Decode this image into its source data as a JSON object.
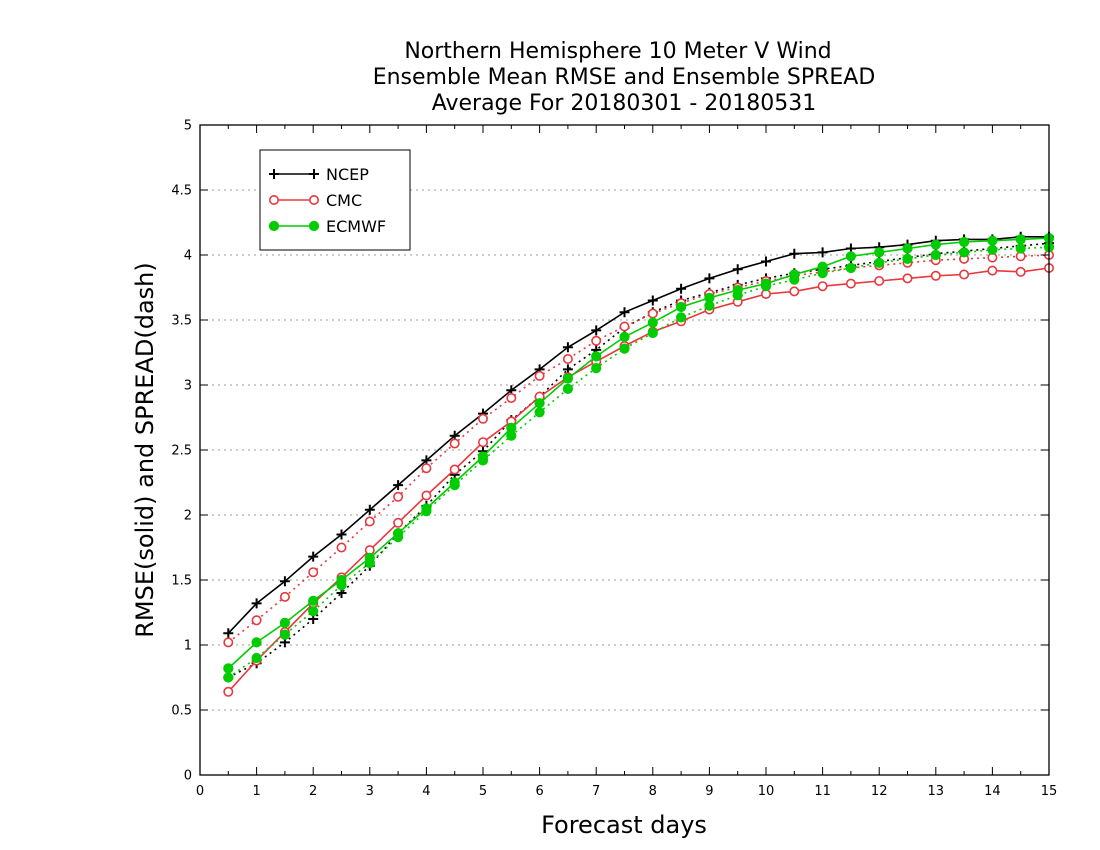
{
  "chart_data": {
    "type": "line",
    "title": [
      "Northern Hemisphere 10 Meter V Wind",
      "Ensemble Mean RMSE and Ensemble SPREAD",
      "Average For 20180301 - 20180531"
    ],
    "xlabel": "Forecast days",
    "ylabel": "RMSE(solid) and SPREAD(dash)",
    "xlim": [
      0,
      15
    ],
    "ylim": [
      0,
      5
    ],
    "xticks": [
      0,
      1,
      2,
      3,
      4,
      5,
      6,
      7,
      8,
      9,
      10,
      11,
      12,
      13,
      14,
      15
    ],
    "yticks": [
      0,
      0.5,
      1,
      1.5,
      2,
      2.5,
      3,
      3.5,
      4,
      4.5,
      5
    ],
    "ytick_labels": [
      "0",
      "0.5",
      "1",
      "1.5",
      "2",
      "2.5",
      "3",
      "3.5",
      "4",
      "4.5",
      "5"
    ],
    "grid": "horizontal dotted",
    "legend_position": "top-left",
    "x": [
      0.5,
      1,
      1.5,
      2,
      2.5,
      3,
      3.5,
      4,
      4.5,
      5,
      5.5,
      6,
      6.5,
      7,
      7.5,
      8,
      8.5,
      9,
      9.5,
      10,
      10.5,
      11,
      11.5,
      12,
      12.5,
      13,
      13.5,
      14,
      14.5,
      15
    ],
    "series": [
      {
        "name": "NCEP",
        "color": "#000000",
        "marker": "plus",
        "rmse": [
          1.09,
          1.32,
          1.49,
          1.68,
          1.85,
          2.04,
          2.23,
          2.42,
          2.61,
          2.78,
          2.96,
          3.12,
          3.29,
          3.42,
          3.56,
          3.65,
          3.74,
          3.82,
          3.89,
          3.95,
          4.01,
          4.02,
          4.05,
          4.06,
          4.08,
          4.11,
          4.12,
          4.12,
          4.14,
          4.14
        ],
        "spread": [
          0.75,
          0.86,
          1.02,
          1.2,
          1.4,
          1.61,
          1.86,
          2.07,
          2.31,
          2.49,
          2.73,
          2.91,
          3.12,
          3.27,
          3.44,
          3.56,
          3.65,
          3.71,
          3.77,
          3.82,
          3.86,
          3.89,
          3.92,
          3.95,
          3.98,
          4.01,
          4.03,
          4.05,
          4.07,
          4.09
        ]
      },
      {
        "name": "CMC",
        "color": "#e8383d",
        "marker": "open-circle",
        "rmse": [
          0.64,
          0.88,
          1.1,
          1.32,
          1.52,
          1.73,
          1.94,
          2.15,
          2.35,
          2.56,
          2.72,
          2.91,
          3.06,
          3.18,
          3.3,
          3.41,
          3.49,
          3.58,
          3.64,
          3.7,
          3.72,
          3.76,
          3.78,
          3.8,
          3.82,
          3.84,
          3.85,
          3.88,
          3.87,
          3.9
        ],
        "spread": [
          1.02,
          1.19,
          1.37,
          1.56,
          1.75,
          1.95,
          2.14,
          2.36,
          2.55,
          2.74,
          2.9,
          3.07,
          3.2,
          3.34,
          3.45,
          3.55,
          3.63,
          3.7,
          3.75,
          3.8,
          3.84,
          3.87,
          3.9,
          3.92,
          3.94,
          3.96,
          3.97,
          3.98,
          3.99,
          4.0
        ]
      },
      {
        "name": "ECMWF",
        "color": "#00cc00",
        "marker": "filled-circle",
        "rmse": [
          0.82,
          1.02,
          1.17,
          1.34,
          1.5,
          1.67,
          1.86,
          2.05,
          2.25,
          2.45,
          2.67,
          2.86,
          3.05,
          3.22,
          3.37,
          3.48,
          3.6,
          3.67,
          3.73,
          3.78,
          3.85,
          3.91,
          3.99,
          4.02,
          4.05,
          4.08,
          4.1,
          4.11,
          4.12,
          4.13
        ],
        "spread": [
          0.75,
          0.9,
          1.08,
          1.26,
          1.46,
          1.63,
          1.83,
          2.03,
          2.23,
          2.42,
          2.61,
          2.79,
          2.97,
          3.13,
          3.28,
          3.4,
          3.52,
          3.61,
          3.69,
          3.76,
          3.81,
          3.86,
          3.9,
          3.94,
          3.97,
          4.0,
          4.02,
          4.04,
          4.05,
          4.06
        ]
      }
    ]
  }
}
